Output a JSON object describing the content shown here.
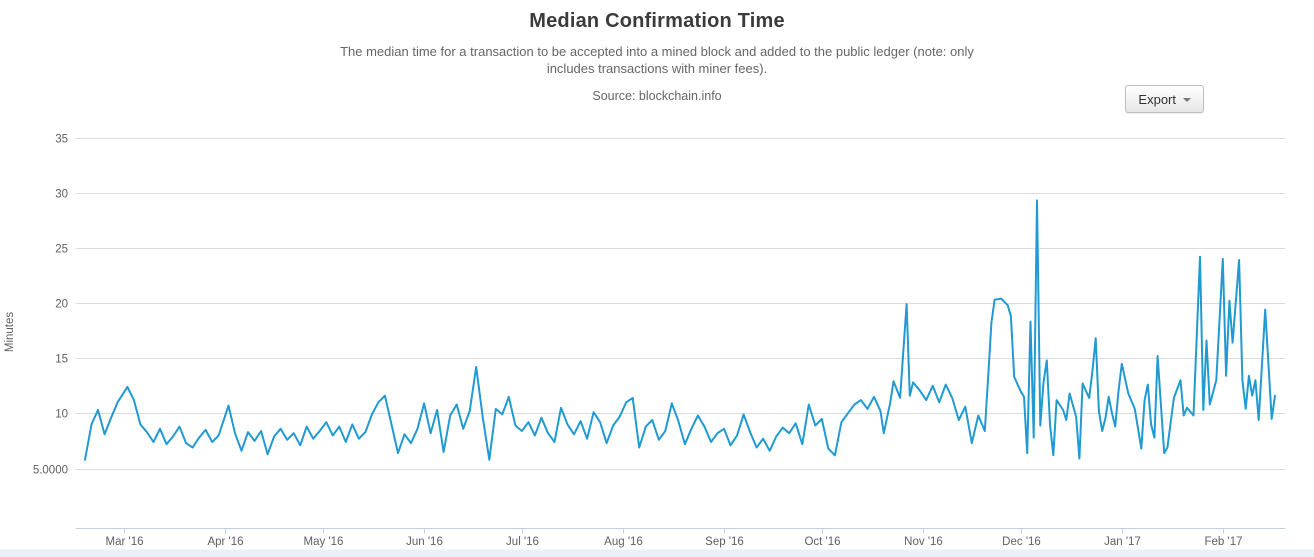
{
  "header": {
    "title": "Median Confirmation Time",
    "subtitle_lines": [
      "The median time for a transaction to be accepted into a mined block and added to the public ledger (note: only",
      "includes transactions with miner fees)."
    ],
    "source": "Source: blockchain.info",
    "export_label": "Export"
  },
  "colors": {
    "line": "#219ad2",
    "grid": "#dcdcdc",
    "axis": "#c0d0e0",
    "axis_label": "#606060"
  },
  "chart_data": {
    "type": "line",
    "title": "Median Confirmation Time",
    "subtitle": "The median time for a transaction to be accepted into a mined block and added to the public ledger (note: only includes transactions with miner fees).",
    "source": "Source: blockchain.info",
    "xlabel": "",
    "ylabel": "Minutes",
    "grid": true,
    "legend": "none",
    "x_unit": "days since 2016-02-18 (daily median confirmation time)",
    "x_tick_labels": [
      "Mar '16",
      "Apr '16",
      "May '16",
      "Jun '16",
      "Jul '16",
      "Aug '16",
      "Sep '16",
      "Oct '16",
      "Nov '16",
      "Dec '16",
      "Jan '17",
      "Feb '17"
    ],
    "x_tick_days": [
      12,
      43,
      73,
      104,
      134,
      165,
      196,
      226,
      257,
      287,
      318,
      349
    ],
    "xlim": [
      0,
      365
    ],
    "ylim": [
      5,
      35
    ],
    "y_ticks": [
      5,
      10,
      15,
      20,
      25,
      30,
      35
    ],
    "y_tick_labels": [
      "5.0000",
      "10",
      "15",
      "20",
      "25",
      "30",
      "35"
    ],
    "series": [
      {
        "name": "Median Confirmation Time (minutes)",
        "color": "#219ad2",
        "points": [
          [
            0,
            5.8
          ],
          [
            2,
            9.0
          ],
          [
            4,
            10.3
          ],
          [
            6,
            8.1
          ],
          [
            8,
            9.6
          ],
          [
            10,
            11.0
          ],
          [
            13,
            12.4
          ],
          [
            15,
            11.2
          ],
          [
            17,
            9.0
          ],
          [
            19,
            8.3
          ],
          [
            21,
            7.4
          ],
          [
            23,
            8.6
          ],
          [
            25,
            7.2
          ],
          [
            27,
            7.9
          ],
          [
            29,
            8.8
          ],
          [
            31,
            7.3
          ],
          [
            33,
            6.9
          ],
          [
            35,
            7.8
          ],
          [
            37,
            8.5
          ],
          [
            39,
            7.4
          ],
          [
            41,
            8.0
          ],
          [
            44,
            10.7
          ],
          [
            46,
            8.2
          ],
          [
            48,
            6.6
          ],
          [
            50,
            8.3
          ],
          [
            52,
            7.5
          ],
          [
            54,
            8.4
          ],
          [
            56,
            6.3
          ],
          [
            58,
            7.9
          ],
          [
            60,
            8.6
          ],
          [
            62,
            7.6
          ],
          [
            64,
            8.2
          ],
          [
            66,
            7.1
          ],
          [
            68,
            8.8
          ],
          [
            70,
            7.7
          ],
          [
            72,
            8.4
          ],
          [
            74,
            9.2
          ],
          [
            76,
            8.0
          ],
          [
            78,
            8.8
          ],
          [
            80,
            7.4
          ],
          [
            82,
            9.0
          ],
          [
            84,
            7.7
          ],
          [
            86,
            8.3
          ],
          [
            88,
            9.9
          ],
          [
            90,
            11.0
          ],
          [
            92,
            11.6
          ],
          [
            94,
            9.0
          ],
          [
            96,
            6.4
          ],
          [
            98,
            8.1
          ],
          [
            100,
            7.3
          ],
          [
            102,
            8.6
          ],
          [
            104,
            10.9
          ],
          [
            106,
            8.2
          ],
          [
            108,
            10.3
          ],
          [
            110,
            6.5
          ],
          [
            112,
            9.8
          ],
          [
            114,
            10.8
          ],
          [
            116,
            8.6
          ],
          [
            118,
            10.2
          ],
          [
            120,
            14.2
          ],
          [
            122,
            9.6
          ],
          [
            124,
            5.8
          ],
          [
            126,
            10.4
          ],
          [
            128,
            9.9
          ],
          [
            130,
            11.5
          ],
          [
            132,
            8.9
          ],
          [
            134,
            8.4
          ],
          [
            136,
            9.2
          ],
          [
            138,
            8.0
          ],
          [
            140,
            9.6
          ],
          [
            142,
            8.2
          ],
          [
            144,
            7.4
          ],
          [
            146,
            10.5
          ],
          [
            148,
            9.0
          ],
          [
            150,
            8.1
          ],
          [
            152,
            9.3
          ],
          [
            154,
            7.7
          ],
          [
            156,
            10.1
          ],
          [
            158,
            9.2
          ],
          [
            160,
            7.3
          ],
          [
            162,
            8.9
          ],
          [
            164,
            9.7
          ],
          [
            166,
            11.0
          ],
          [
            168,
            11.4
          ],
          [
            170,
            6.9
          ],
          [
            172,
            8.8
          ],
          [
            174,
            9.4
          ],
          [
            176,
            7.6
          ],
          [
            178,
            8.4
          ],
          [
            180,
            10.9
          ],
          [
            182,
            9.3
          ],
          [
            184,
            7.2
          ],
          [
            186,
            8.6
          ],
          [
            188,
            9.8
          ],
          [
            190,
            8.8
          ],
          [
            192,
            7.4
          ],
          [
            194,
            8.2
          ],
          [
            196,
            8.6
          ],
          [
            198,
            7.1
          ],
          [
            200,
            8.0
          ],
          [
            202,
            9.9
          ],
          [
            204,
            8.3
          ],
          [
            206,
            6.9
          ],
          [
            208,
            7.7
          ],
          [
            210,
            6.6
          ],
          [
            212,
            7.9
          ],
          [
            214,
            8.7
          ],
          [
            216,
            8.2
          ],
          [
            218,
            9.1
          ],
          [
            220,
            7.2
          ],
          [
            222,
            10.8
          ],
          [
            224,
            8.9
          ],
          [
            226,
            9.5
          ],
          [
            228,
            6.8
          ],
          [
            230,
            6.2
          ],
          [
            232,
            9.2
          ],
          [
            234,
            10.0
          ],
          [
            236,
            10.8
          ],
          [
            238,
            11.2
          ],
          [
            240,
            10.4
          ],
          [
            242,
            11.5
          ],
          [
            244,
            10.2
          ],
          [
            245,
            8.2
          ],
          [
            247,
            11.0
          ],
          [
            248,
            12.9
          ],
          [
            250,
            11.4
          ],
          [
            252,
            19.9
          ],
          [
            253,
            11.6
          ],
          [
            254,
            12.8
          ],
          [
            256,
            12.1
          ],
          [
            258,
            11.2
          ],
          [
            260,
            12.5
          ],
          [
            262,
            11.0
          ],
          [
            264,
            12.6
          ],
          [
            266,
            11.4
          ],
          [
            268,
            9.4
          ],
          [
            270,
            10.6
          ],
          [
            272,
            7.3
          ],
          [
            274,
            9.8
          ],
          [
            276,
            8.4
          ],
          [
            277,
            13.2
          ],
          [
            278,
            18.2
          ],
          [
            279,
            20.3
          ],
          [
            281,
            20.4
          ],
          [
            283,
            19.8
          ],
          [
            284,
            18.8
          ],
          [
            285,
            13.3
          ],
          [
            287,
            12.0
          ],
          [
            288,
            11.5
          ],
          [
            289,
            6.4
          ],
          [
            290,
            18.3
          ],
          [
            291,
            7.8
          ],
          [
            292,
            29.3
          ],
          [
            293,
            8.9
          ],
          [
            294,
            12.8
          ],
          [
            295,
            14.8
          ],
          [
            296,
            9.0
          ],
          [
            297,
            6.2
          ],
          [
            298,
            11.2
          ],
          [
            300,
            10.3
          ],
          [
            301,
            9.4
          ],
          [
            302,
            11.8
          ],
          [
            304,
            9.7
          ],
          [
            305,
            5.9
          ],
          [
            306,
            12.7
          ],
          [
            308,
            11.4
          ],
          [
            309,
            13.8
          ],
          [
            310,
            16.8
          ],
          [
            311,
            10.2
          ],
          [
            312,
            8.4
          ],
          [
            313,
            9.6
          ],
          [
            314,
            11.5
          ],
          [
            315,
            10.0
          ],
          [
            316,
            8.8
          ],
          [
            317,
            12.0
          ],
          [
            318,
            14.5
          ],
          [
            320,
            11.8
          ],
          [
            322,
            10.4
          ],
          [
            324,
            6.8
          ],
          [
            325,
            11.2
          ],
          [
            326,
            12.6
          ],
          [
            327,
            9.0
          ],
          [
            328,
            7.8
          ],
          [
            329,
            15.2
          ],
          [
            330,
            10.8
          ],
          [
            331,
            6.4
          ],
          [
            332,
            6.9
          ],
          [
            334,
            11.4
          ],
          [
            336,
            13.0
          ],
          [
            337,
            9.8
          ],
          [
            338,
            10.5
          ],
          [
            340,
            9.8
          ],
          [
            342,
            24.2
          ],
          [
            343,
            10.3
          ],
          [
            344,
            16.6
          ],
          [
            345,
            10.8
          ],
          [
            347,
            13.0
          ],
          [
            349,
            24.0
          ],
          [
            350,
            13.4
          ],
          [
            351,
            20.2
          ],
          [
            352,
            16.4
          ],
          [
            354,
            23.9
          ],
          [
            355,
            13.0
          ],
          [
            356,
            10.4
          ],
          [
            357,
            13.4
          ],
          [
            358,
            11.6
          ],
          [
            359,
            13.0
          ],
          [
            360,
            9.4
          ],
          [
            362,
            19.4
          ],
          [
            364,
            9.5
          ],
          [
            365,
            11.6
          ]
        ]
      }
    ]
  }
}
